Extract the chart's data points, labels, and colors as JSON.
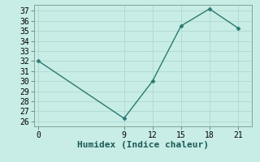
{
  "x": [
    0,
    9,
    12,
    15,
    18,
    21
  ],
  "y": [
    32.0,
    26.3,
    30.0,
    35.5,
    37.2,
    35.3
  ],
  "xlabel": "Humidex (Indice chaleur)",
  "ylim": [
    25.5,
    37.6
  ],
  "xlim": [
    -0.5,
    22.5
  ],
  "yticks": [
    26,
    27,
    28,
    29,
    30,
    31,
    32,
    33,
    34,
    35,
    36,
    37
  ],
  "xticks": [
    0,
    9,
    12,
    15,
    18,
    21
  ],
  "line_color": "#2a7a70",
  "marker_color": "#2a7a70",
  "bg_color": "#c8ece6",
  "grid_color": "#b0d8d0",
  "xlabel_fontsize": 8,
  "tick_fontsize": 7
}
